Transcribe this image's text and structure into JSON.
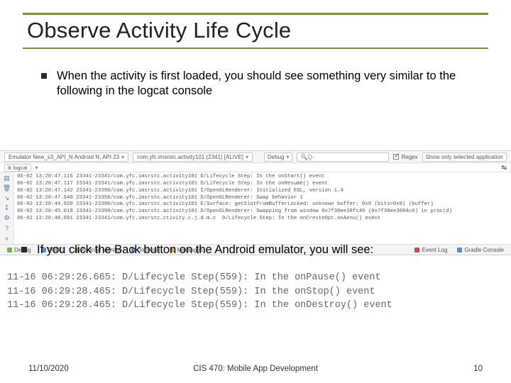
{
  "title": "Observe Activity Life Cycle",
  "bullets": {
    "b1": "When the activity is first loaded, you should see something very similar to the following in the logcat console",
    "b2": "If you click the Back button on the Android emulator, you will see:"
  },
  "logcat_panel": {
    "device_chip": "Emulator New_s3_API_N Android N, API 23",
    "proc_chip": "com.yfc.imsrstc.activity101  (2341)  [ALIVE]",
    "level_chip": "Debug",
    "search_placeholder": "Q-",
    "regex_label": "Regex",
    "filter_label": "Show only selected application",
    "tab_label": "lk logcat",
    "gutter_icons": [
      "▤",
      "🗑",
      "↘",
      "↧",
      "⚙",
      "?",
      "»"
    ],
    "lines": [
      "06-02 13:20:47.116 23341-23341/com.yfc.imsrstc.activity101 D/Lifecycle Step: In the onStart() event",
      "06-02 13:20:47.117 23341-23341/com.yfc.imsrstc.activity101 D/Lifecycle Step: In the onResume() event",
      "06-02 13:20:47.142 23341-23390/com.yfc.imsrstc.activity101 I/OpenGLRenderer: Initialized EGL, version 1.4",
      "06-02 13:20:47.640 23341-23358/com.yfc.imsrstc.activity101 D/OpenGLRenderer: Swap behavior 1",
      "06-02 13:20:44.920 23341-23390/com.yfc.imsrstc.activity101 E/Surface: getSlotFromBufferLocked: unknown buffer: 0x0 (bits=0x0) (buffer)",
      "06-02 13:20:45.018 23341-23398/com.yfc.imsrstc.activity101 D/OpenGLRenderer: Swapping from window 0x7f38ee38fc40 (0x7f38ee3084c0) in proc(d)",
      "06-02 13:20:48.691 23341-23341/com.yfc.imsrstc.ctivity.c.j.d.m.c  D/Lifecycle Step: In the onCresteOpt.onAenu() event"
    ],
    "bottom": {
      "debug": "Debug",
      "todo": "TODO",
      "monitor": "Android Monitor",
      "terminal": "Terminal",
      "messages": "Messages",
      "eventlog": "Event Log",
      "gradle": "Gradle Console"
    }
  },
  "plain_log": {
    "l1": "11-16 06:29:26.665: D/Lifecycle Step(559): In the onPause() event",
    "l2": "11-16 06:29:28.465: D/Lifecycle Step(559): In the onStop() event",
    "l3": "11-16 06:29:28.465: D/Lifecycle Step(559): In the onDestroy() event"
  },
  "footer": {
    "date": "11/10/2020",
    "course": "CIS 470: Mobile App Development",
    "page": "10"
  },
  "colors": {
    "accent": "#7d8b3a",
    "text": "#222222",
    "log_text": "#666666",
    "panel_bg": "#f3f3f3"
  }
}
